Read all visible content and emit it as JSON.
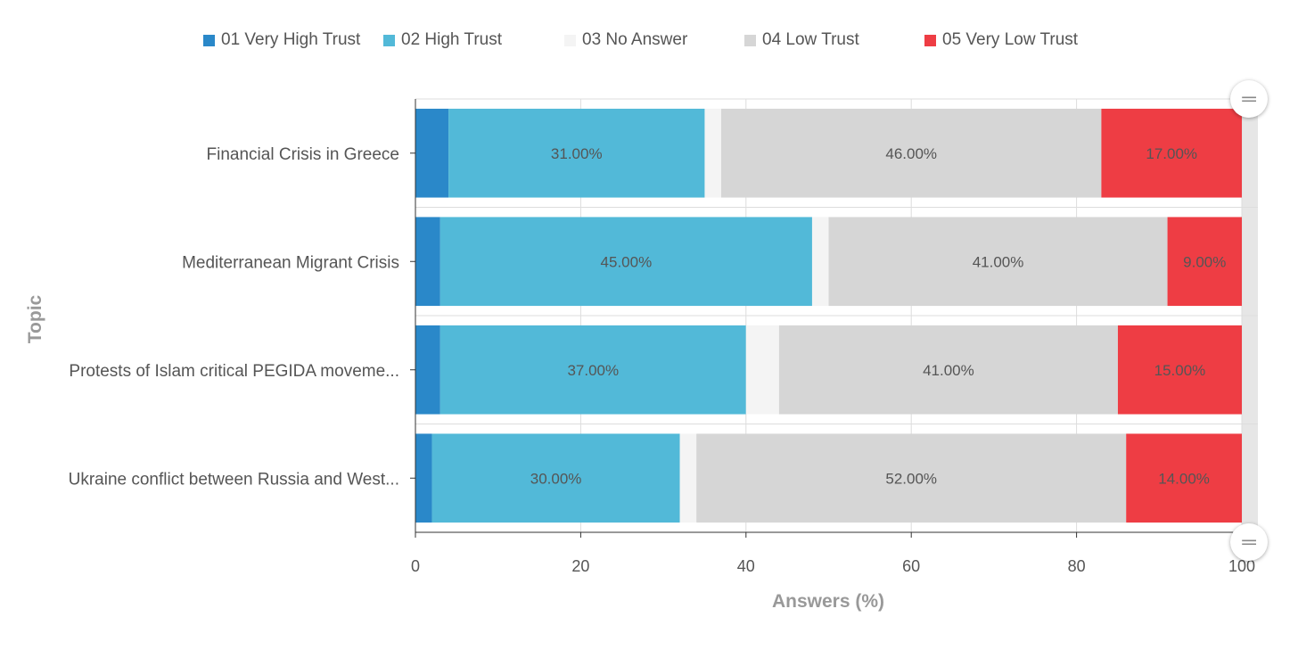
{
  "chart_data": {
    "type": "bar",
    "orientation": "horizontal",
    "stacked": true,
    "categories": [
      "Financial Crisis in Greece",
      "Mediterranean Migrant Crisis",
      "Protests of Islam critical PEGIDA moveme...",
      "Ukraine conflict between Russia and West..."
    ],
    "series": [
      {
        "name": "01 Very High Trust",
        "color": "#2a88c9",
        "values": [
          4,
          3,
          3,
          2
        ],
        "labels": [
          "",
          "",
          "",
          ""
        ]
      },
      {
        "name": "02 High Trust",
        "color": "#52b9d8",
        "values": [
          31,
          45,
          37,
          30
        ],
        "labels": [
          "31.00%",
          "45.00%",
          "37.00%",
          "30.00%"
        ]
      },
      {
        "name": "03 No Answer",
        "color": "#f4f4f4",
        "values": [
          2,
          2,
          4,
          2
        ],
        "labels": [
          "",
          "",
          "",
          ""
        ]
      },
      {
        "name": "04 Low Trust",
        "color": "#d6d6d6",
        "values": [
          46,
          41,
          41,
          52
        ],
        "labels": [
          "46.00%",
          "41.00%",
          "41.00%",
          "52.00%"
        ]
      },
      {
        "name": "05 Very Low Trust",
        "color": "#ee3d44",
        "values": [
          17,
          9,
          15,
          14
        ],
        "labels": [
          "17.00%",
          "9.00%",
          "15.00%",
          "14.00%"
        ]
      }
    ],
    "xlabel": "Answers (%)",
    "ylabel": "Topic",
    "xlim": [
      0,
      100
    ],
    "xticks": [
      "0",
      "20",
      "40",
      "60",
      "80",
      "100"
    ],
    "grid": true,
    "legend_position": "top",
    "scrollbar_icon": "drag-handle-icon"
  }
}
